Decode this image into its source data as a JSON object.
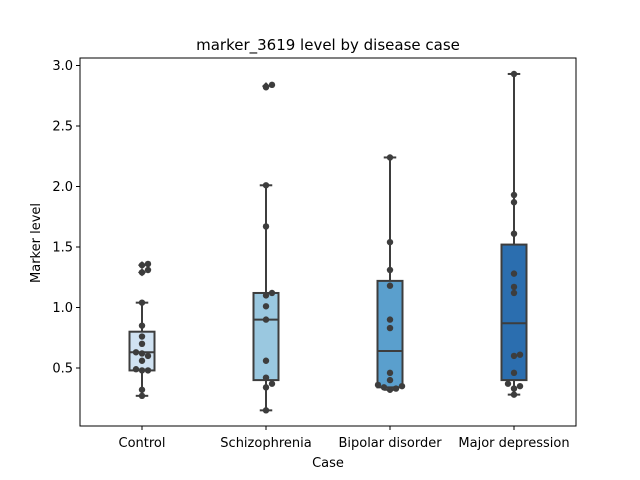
{
  "chart_data": {
    "type": "box",
    "title": "marker_3619 level by disease case",
    "xlabel": "Case",
    "ylabel": "Marker level",
    "ylim": [
      0,
      3.0
    ],
    "yticks": [
      "0.5",
      "1.0",
      "1.5",
      "2.0",
      "2.5",
      "3.0"
    ],
    "grid": false,
    "categories": [
      {
        "name": "Control",
        "color": "#d0e2f2",
        "q1": 0.48,
        "median": 0.63,
        "q3": 0.8,
        "whisker_low": 0.27,
        "whisker_high": 1.04,
        "outliers": [
          1.29,
          1.35
        ],
        "points": [
          0.27,
          0.32,
          0.48,
          0.48,
          0.49,
          0.56,
          0.6,
          0.62,
          0.63,
          0.7,
          0.76,
          0.85,
          1.04,
          1.29,
          1.31,
          1.35,
          1.36
        ]
      },
      {
        "name": "Schizophrenia",
        "color": "#9ac8e0",
        "q1": 0.4,
        "median": 0.9,
        "q3": 1.12,
        "whisker_low": 0.15,
        "whisker_high": 2.01,
        "outliers": [
          2.83
        ],
        "points": [
          0.15,
          0.34,
          0.37,
          0.42,
          0.56,
          0.9,
          1.01,
          1.1,
          1.12,
          1.67,
          2.01,
          2.82,
          2.84
        ]
      },
      {
        "name": "Bipolar disorder",
        "color": "#5a9fcd",
        "q1": 0.34,
        "median": 0.64,
        "q3": 1.22,
        "whisker_low": 0.32,
        "whisker_high": 2.24,
        "outliers": [],
        "points": [
          0.32,
          0.33,
          0.34,
          0.35,
          0.36,
          0.4,
          0.46,
          0.83,
          0.9,
          1.18,
          1.31,
          1.54,
          2.24
        ]
      },
      {
        "name": "Major depression",
        "color": "#2b6eaf",
        "q1": 0.4,
        "median": 0.87,
        "q3": 1.52,
        "whisker_low": 0.28,
        "whisker_high": 2.93,
        "outliers": [],
        "points": [
          0.28,
          0.33,
          0.35,
          0.37,
          0.46,
          0.6,
          0.61,
          1.12,
          1.17,
          1.28,
          1.61,
          1.87,
          1.93,
          2.93
        ]
      }
    ]
  }
}
